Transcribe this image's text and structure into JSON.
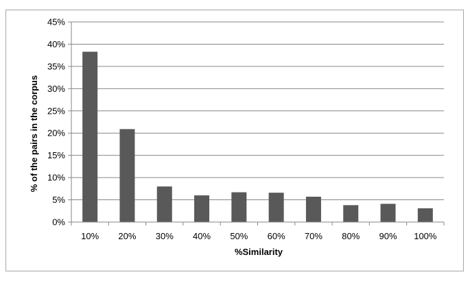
{
  "chart_data": {
    "type": "bar",
    "title": "",
    "xlabel": "%Similarity",
    "ylabel": "% of the pairs in the corpus",
    "categories": [
      "10%",
      "20%",
      "30%",
      "40%",
      "50%",
      "60%",
      "70%",
      "80%",
      "90%",
      "100%"
    ],
    "values": [
      38.3,
      20.9,
      8.0,
      6.0,
      6.7,
      6.6,
      5.7,
      3.8,
      4.1,
      3.1
    ],
    "ylim": [
      0,
      45
    ],
    "yticks": [
      "0%",
      "5%",
      "10%",
      "15%",
      "20%",
      "25%",
      "30%",
      "35%",
      "40%",
      "45%"
    ],
    "grid": true,
    "legend": "none",
    "bar_color": "#595959",
    "grid_color": "#868686"
  }
}
